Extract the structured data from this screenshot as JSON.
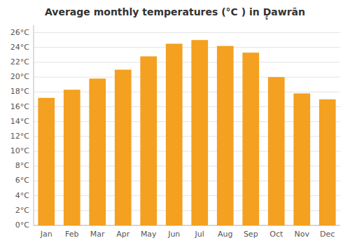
{
  "chart_data": {
    "type": "bar",
    "title": "Average monthly temperatures (°C ) in Ḑ̣awrān",
    "categories": [
      "Jan",
      "Feb",
      "Mar",
      "Apr",
      "May",
      "Jun",
      "Jul",
      "Aug",
      "Sep",
      "Oct",
      "Nov",
      "Dec"
    ],
    "values": [
      17.2,
      18.3,
      19.8,
      21.0,
      22.8,
      24.5,
      25.0,
      24.2,
      23.3,
      20.0,
      17.8,
      17.0
    ],
    "color": "#F4A020",
    "ylim": [
      0,
      27
    ],
    "yticks": [
      {
        "value": 0,
        "label": "0°C"
      },
      {
        "value": 2,
        "label": "2°C"
      },
      {
        "value": 4,
        "label": "4°C"
      },
      {
        "value": 6,
        "label": "6°C"
      },
      {
        "value": 8,
        "label": "8°C"
      },
      {
        "value": 10,
        "label": "10°C"
      },
      {
        "value": 12,
        "label": "12°C"
      },
      {
        "value": 14,
        "label": "14°C"
      },
      {
        "value": 16,
        "label": "16°C"
      },
      {
        "value": 18,
        "label": "18°C"
      },
      {
        "value": 20,
        "label": "20°C"
      },
      {
        "value": 22,
        "label": "22°C"
      },
      {
        "value": 24,
        "label": "24°C"
      },
      {
        "value": 26,
        "label": "26°C"
      }
    ],
    "grid": true
  }
}
